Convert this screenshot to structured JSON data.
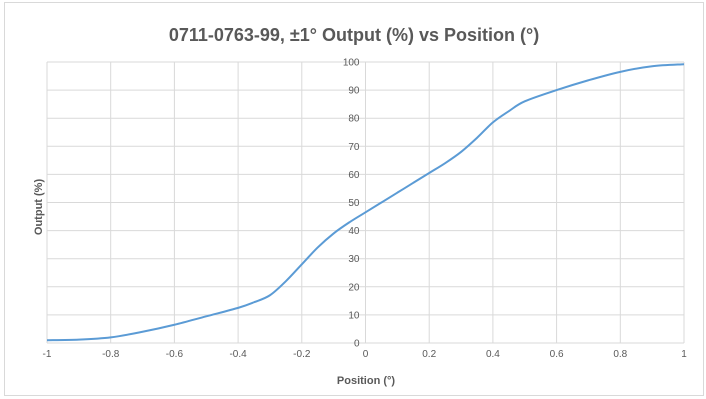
{
  "chart_data": {
    "type": "line",
    "title": "0711-0763-99, ±1° Output (%) vs Position (°)",
    "xlabel": "Position (°)",
    "ylabel": "Output (%)",
    "xlim": [
      -1,
      1
    ],
    "ylim": [
      0,
      100
    ],
    "x_ticks": [
      "-1",
      "-0.8",
      "-0.6",
      "-0.4",
      "-0.2",
      "0",
      "0.2",
      "0.4",
      "0.6",
      "0.8",
      "1"
    ],
    "y_ticks": [
      "0",
      "10",
      "20",
      "30",
      "40",
      "50",
      "60",
      "70",
      "80",
      "90",
      "100"
    ],
    "grid": true,
    "legend": "none",
    "series": [
      {
        "color": "#5b9bd5",
        "x": [
          -1,
          -0.9,
          -0.8,
          -0.7,
          -0.6,
          -0.5,
          -0.4,
          -0.35,
          -0.3,
          -0.25,
          -0.2,
          -0.15,
          -0.1,
          -0.05,
          0,
          0.05,
          0.1,
          0.15,
          0.2,
          0.25,
          0.3,
          0.35,
          0.4,
          0.45,
          0.5,
          0.6,
          0.7,
          0.8,
          0.9,
          1
        ],
        "y": [
          1,
          1.2,
          2,
          4,
          6.5,
          9.5,
          12.5,
          14.5,
          17,
          22,
          28,
          34,
          39,
          43,
          46.5,
          50,
          53.5,
          57,
          60.5,
          64,
          68,
          73,
          78.5,
          82.5,
          86,
          90,
          93.5,
          96.5,
          98.5,
          99.2
        ]
      }
    ]
  }
}
